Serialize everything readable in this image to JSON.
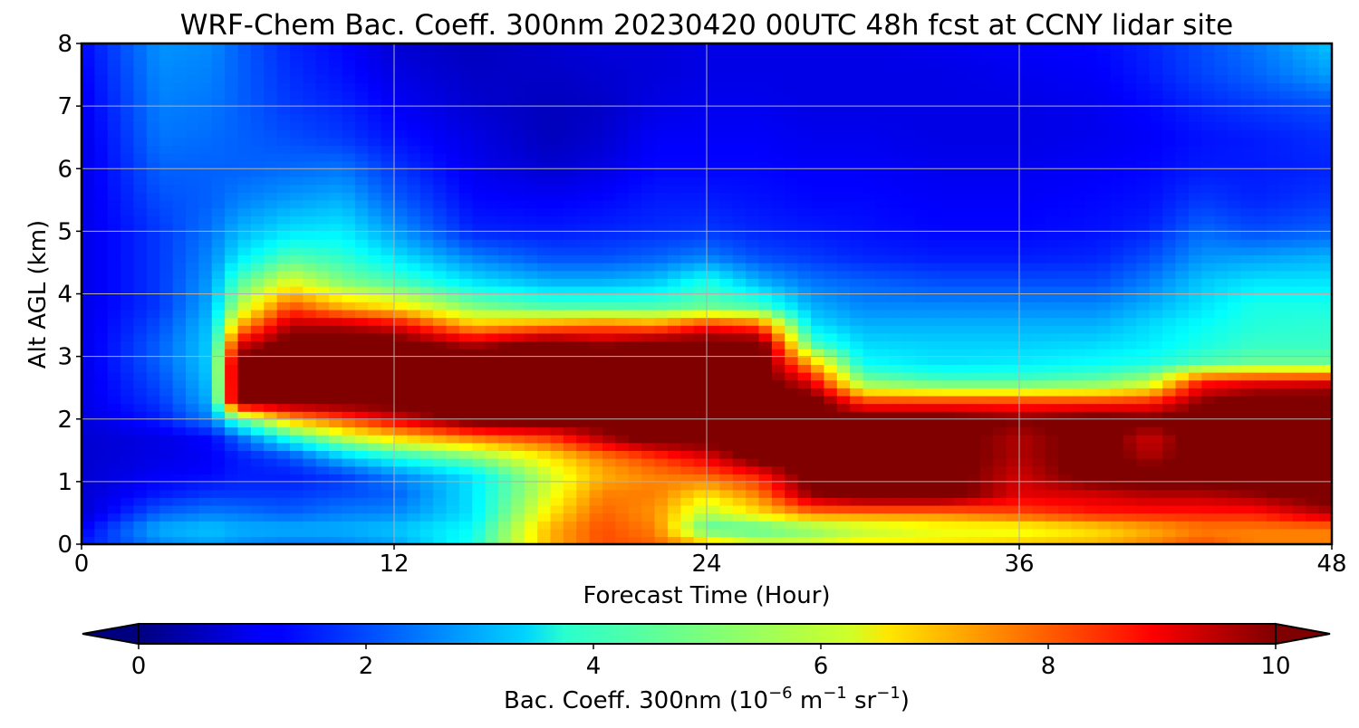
{
  "chart_data": {
    "type": "heatmap",
    "title": "WRF-Chem Bac. Coeff. 300nm  20230420 00UTC 48h fcst at CCNY lidar site",
    "xlabel": "Forecast Time (Hour)",
    "ylabel": "Alt AGL (km)",
    "colorbar_label": {
      "main": "Bac. Coeff. 300nm  (10",
      "exp1": "−6",
      "unit1": " m",
      "exp2": "−1",
      "unit2": " sr",
      "exp3": "−1",
      "close": ")"
    },
    "xlim": [
      0,
      48
    ],
    "ylim": [
      0,
      8
    ],
    "x_ticks": [
      "0",
      "12",
      "24",
      "36",
      "48"
    ],
    "y_ticks": [
      "0",
      "1",
      "2",
      "3",
      "4",
      "5",
      "6",
      "7",
      "8"
    ],
    "colorbar_ticks": [
      "0",
      "2",
      "4",
      "6",
      "8",
      "10"
    ],
    "clim": [
      0,
      10
    ],
    "colormap": "jet",
    "colorbar_extend": "both",
    "grid": true,
    "x": [
      0,
      3,
      5,
      6,
      8,
      10,
      12,
      15,
      18,
      20,
      22,
      24,
      26,
      28,
      30,
      33,
      36,
      39,
      41,
      43,
      45,
      48
    ],
    "y": [
      0,
      0.25,
      0.5,
      0.8,
      1.1,
      1.4,
      1.7,
      2.0,
      2.3,
      2.6,
      2.9,
      3.2,
      3.5,
      3.8,
      4.2,
      4.6,
      5.0,
      5.5,
      6.0,
      6.5,
      7.0,
      7.5,
      8.0
    ],
    "z": [
      [
        1.5,
        2.5,
        2.8,
        2.6,
        2.4,
        2.5,
        2.8,
        4.0,
        7.0,
        8.0,
        7.8,
        7.0,
        6.0,
        6.0,
        6.5,
        6.5,
        6.8,
        7.0,
        7.5,
        8.0,
        7.5,
        7.5
      ],
      [
        1.2,
        3.0,
        3.2,
        3.0,
        3.0,
        3.0,
        3.2,
        3.8,
        7.0,
        8.0,
        7.5,
        4.5,
        4.5,
        5.0,
        5.5,
        6.0,
        6.0,
        6.5,
        7.0,
        7.5,
        7.5,
        7.5
      ],
      [
        0.8,
        2.2,
        2.5,
        2.4,
        2.2,
        2.5,
        2.6,
        3.5,
        6.5,
        7.8,
        7.3,
        5.5,
        6.5,
        7.5,
        7.5,
        7.5,
        8.0,
        8.5,
        8.5,
        8.5,
        8.5,
        9.5
      ],
      [
        0.8,
        1.5,
        1.8,
        1.8,
        1.8,
        2.0,
        2.2,
        3.5,
        6.0,
        7.5,
        7.5,
        6.5,
        7.5,
        9.8,
        10.5,
        10.5,
        9.0,
        9.2,
        9.5,
        9.5,
        9.8,
        10.5
      ],
      [
        0.8,
        1.2,
        1.3,
        1.5,
        1.5,
        1.8,
        2.5,
        3.5,
        5.8,
        7.0,
        7.5,
        7.8,
        8.5,
        10.5,
        10.5,
        10.5,
        9.2,
        10.5,
        10.5,
        10.5,
        10.5,
        10.5
      ],
      [
        0.8,
        1.0,
        1.2,
        1.5,
        2.0,
        3.2,
        4.0,
        5.0,
        6.5,
        7.5,
        8.2,
        9.0,
        10.5,
        10.5,
        10.5,
        10.5,
        9.5,
        10.5,
        9.5,
        10.5,
        10.5,
        10.5
      ],
      [
        0.8,
        1.0,
        1.3,
        2.2,
        4.0,
        5.5,
        6.5,
        7.5,
        8.2,
        9.5,
        10.5,
        10.5,
        10.5,
        10.5,
        10.5,
        10.5,
        9.5,
        10.5,
        9.2,
        10.5,
        10.5,
        10.5
      ],
      [
        0.9,
        1.5,
        2.5,
        4.5,
        7.0,
        8.0,
        9.0,
        10.5,
        10.5,
        10.5,
        10.5,
        10.5,
        10.5,
        10.5,
        10.5,
        10.5,
        10.0,
        10.5,
        10.2,
        10.5,
        10.5,
        10.5
      ],
      [
        1.0,
        1.8,
        3.0,
        10.5,
        10.5,
        10.5,
        10.5,
        10.5,
        10.5,
        10.5,
        10.5,
        10.5,
        10.5,
        10.5,
        8.0,
        8.0,
        8.0,
        8.0,
        8.2,
        9.8,
        10.5,
        10.5
      ],
      [
        1.0,
        2.0,
        3.2,
        10.5,
        10.5,
        10.5,
        10.5,
        10.5,
        10.5,
        10.5,
        10.5,
        10.5,
        10.5,
        9.0,
        5.0,
        4.5,
        4.5,
        4.8,
        5.5,
        8.5,
        8.8,
        9.0
      ],
      [
        1.0,
        2.2,
        3.3,
        10.5,
        10.5,
        10.5,
        10.5,
        10.5,
        10.5,
        10.5,
        10.5,
        10.5,
        10.5,
        7.0,
        3.8,
        3.5,
        3.6,
        3.8,
        4.0,
        4.5,
        4.8,
        4.8
      ],
      [
        1.0,
        2.2,
        3.3,
        9.0,
        10.5,
        10.5,
        10.5,
        9.5,
        10.5,
        9.8,
        10.5,
        10.5,
        10.5,
        4.5,
        3.4,
        3.3,
        3.3,
        3.4,
        3.6,
        4.0,
        4.3,
        4.3
      ],
      [
        1.0,
        2.0,
        3.2,
        7.0,
        9.5,
        9.5,
        9.0,
        7.0,
        7.5,
        7.8,
        7.5,
        8.5,
        8.0,
        3.5,
        3.0,
        3.0,
        3.0,
        3.0,
        3.4,
        3.8,
        4.1,
        4.2
      ],
      [
        1.0,
        1.8,
        3.0,
        5.5,
        8.0,
        7.0,
        6.5,
        5.0,
        4.5,
        4.5,
        4.5,
        4.8,
        4.5,
        3.0,
        2.6,
        2.6,
        2.6,
        2.6,
        3.0,
        3.5,
        4.0,
        4.0
      ],
      [
        1.0,
        1.8,
        2.8,
        4.5,
        6.0,
        5.0,
        4.5,
        3.5,
        3.0,
        3.0,
        3.2,
        4.0,
        3.0,
        2.4,
        2.2,
        2.0,
        2.0,
        2.0,
        2.5,
        3.2,
        3.5,
        3.5
      ],
      [
        1.0,
        1.8,
        2.6,
        3.5,
        4.5,
        4.2,
        3.5,
        2.5,
        2.0,
        2.0,
        2.2,
        2.5,
        2.0,
        1.8,
        1.6,
        1.5,
        1.5,
        1.6,
        2.0,
        2.7,
        2.8,
        3.0
      ],
      [
        1.0,
        1.8,
        2.4,
        3.0,
        3.5,
        3.6,
        2.8,
        1.6,
        1.5,
        1.6,
        1.7,
        1.8,
        1.6,
        1.5,
        1.4,
        1.3,
        1.3,
        1.4,
        1.6,
        2.3,
        2.0,
        2.2
      ],
      [
        1.0,
        2.0,
        2.2,
        2.5,
        2.8,
        3.0,
        2.2,
        1.3,
        1.2,
        1.3,
        1.5,
        1.5,
        1.4,
        1.3,
        1.3,
        1.2,
        1.2,
        1.3,
        1.4,
        1.8,
        1.6,
        1.8
      ],
      [
        1.0,
        2.2,
        2.2,
        2.2,
        2.3,
        2.4,
        1.8,
        1.1,
        0.8,
        1.0,
        1.3,
        1.3,
        1.3,
        1.2,
        1.2,
        1.1,
        1.1,
        1.2,
        1.3,
        1.5,
        1.5,
        1.6
      ],
      [
        1.0,
        2.4,
        2.3,
        2.2,
        2.0,
        1.8,
        1.4,
        1.0,
        0.6,
        0.8,
        1.2,
        1.2,
        1.2,
        1.1,
        1.1,
        1.0,
        1.0,
        1.1,
        1.2,
        1.4,
        1.5,
        1.7
      ],
      [
        1.1,
        2.5,
        2.4,
        2.2,
        1.8,
        1.6,
        1.2,
        0.8,
        0.6,
        0.7,
        1.0,
        1.1,
        1.1,
        1.0,
        1.0,
        1.0,
        1.0,
        1.1,
        1.3,
        1.6,
        1.8,
        2.0
      ],
      [
        1.2,
        2.6,
        2.5,
        2.2,
        1.7,
        1.4,
        1.0,
        0.7,
        0.7,
        0.8,
        0.9,
        1.0,
        1.0,
        1.0,
        1.0,
        1.0,
        1.1,
        1.2,
        1.5,
        1.9,
        2.2,
        2.8
      ],
      [
        1.3,
        2.7,
        2.6,
        2.2,
        1.6,
        1.3,
        0.8,
        0.6,
        0.8,
        0.9,
        0.9,
        1.0,
        1.0,
        1.0,
        1.0,
        1.1,
        1.2,
        1.3,
        1.6,
        2.0,
        2.4,
        3.2
      ]
    ]
  }
}
